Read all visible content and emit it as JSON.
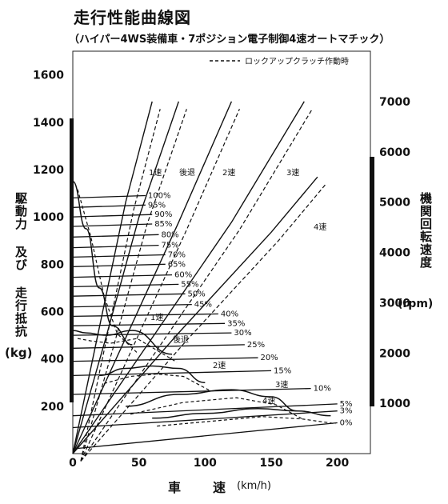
{
  "chart_data": {
    "type": "line",
    "title": "走行性能曲線図",
    "subtitle": "（ハイパー4WS装備車・7ポジション電子制御4速オートマチック）",
    "legend": {
      "dashed": "ロックアップクラッチ作動時"
    },
    "xlabel": "車　速",
    "xlabel_unit": "(km/h)",
    "ylabel_left": "駆動力 及び 走行抵抗",
    "ylabel_left_unit": "(kg)",
    "ylabel_right": "機関回転速度",
    "ylabel_right_unit": "(rpm)",
    "xlim": [
      0,
      225
    ],
    "ylim_left": [
      0,
      1700
    ],
    "ylim_right": [
      0,
      8000
    ],
    "x_ticks": [
      "0",
      "50",
      "100",
      "150",
      "200"
    ],
    "y_left_ticks": [
      "200",
      "400",
      "600",
      "800",
      "1000",
      "1200",
      "1400",
      "1600"
    ],
    "y_right_ticks": [
      "1000",
      "2000",
      "3000",
      "4000",
      "5000",
      "6000",
      "7000"
    ],
    "gear_labels": [
      "1速",
      "後退",
      "2速",
      "3速",
      "4速",
      "1速",
      "後退",
      "2速",
      "3速",
      "4速"
    ],
    "resistance_labels": [
      "5%",
      "3%",
      "0%"
    ],
    "drive_force": [
      {
        "name": "1速",
        "x": [
          0,
          10,
          20,
          30,
          45
        ],
        "y": [
          1150,
          950,
          700,
          540,
          460
        ]
      },
      {
        "name": "後退",
        "x": [
          0,
          10,
          25,
          45,
          75
        ],
        "y": [
          520,
          510,
          500,
          520,
          420
        ]
      },
      {
        "name": "2速",
        "x": [
          20,
          40,
          60,
          80,
          100
        ],
        "y": [
          330,
          360,
          370,
          360,
          300
        ]
      },
      {
        "name": "3速",
        "x": [
          40,
          80,
          120,
          150,
          170
        ],
        "y": [
          200,
          250,
          270,
          240,
          180
        ]
      },
      {
        "name": "4速",
        "x": [
          60,
          100,
          140,
          170,
          195
        ],
        "y": [
          150,
          170,
          190,
          180,
          160
        ]
      }
    ],
    "engine_speed": [
      {
        "name": "1速",
        "x": [
          0,
          20,
          40,
          60
        ],
        "y": [
          0,
          2500,
          5000,
          7000
        ]
      },
      {
        "name": "後退",
        "x": [
          0,
          25,
          50,
          80
        ],
        "y": [
          0,
          2300,
          4700,
          7000
        ]
      },
      {
        "name": "2速",
        "x": [
          0,
          40,
          80,
          120
        ],
        "y": [
          0,
          2300,
          4600,
          7000
        ]
      },
      {
        "name": "3速",
        "x": [
          0,
          60,
          120,
          175
        ],
        "y": [
          0,
          2300,
          4600,
          7000
        ]
      },
      {
        "name": "4速",
        "x": [
          0,
          80,
          150,
          185
        ],
        "y": [
          0,
          2400,
          4400,
          5500
        ]
      }
    ],
    "running_resistance": [
      {
        "name": "100%",
        "x": [
          0,
          55
        ],
        "y": [
          1080,
          1090
        ]
      },
      {
        "name": "95%",
        "x": [
          0,
          55
        ],
        "y": [
          1040,
          1050
        ]
      },
      {
        "name": "90%",
        "x": [
          0,
          60
        ],
        "y": [
          1000,
          1010
        ]
      },
      {
        "name": "85%",
        "x": [
          0,
          60
        ],
        "y": [
          960,
          970
        ]
      },
      {
        "name": "80%",
        "x": [
          0,
          65
        ],
        "y": [
          915,
          925
        ]
      },
      {
        "name": "75%",
        "x": [
          0,
          65
        ],
        "y": [
          870,
          880
        ]
      },
      {
        "name": "70%",
        "x": [
          0,
          70
        ],
        "y": [
          830,
          840
        ]
      },
      {
        "name": "65%",
        "x": [
          0,
          70
        ],
        "y": [
          790,
          800
        ]
      },
      {
        "name": "60%",
        "x": [
          0,
          75
        ],
        "y": [
          745,
          755
        ]
      },
      {
        "name": "55%",
        "x": [
          0,
          80
        ],
        "y": [
          705,
          715
        ]
      },
      {
        "name": "50%",
        "x": [
          0,
          85
        ],
        "y": [
          665,
          675
        ]
      },
      {
        "name": "45%",
        "x": [
          0,
          90
        ],
        "y": [
          620,
          630
        ]
      },
      {
        "name": "40%",
        "x": [
          0,
          110
        ],
        "y": [
          580,
          590
        ]
      },
      {
        "name": "35%",
        "x": [
          0,
          115
        ],
        "y": [
          540,
          550
        ]
      },
      {
        "name": "30%",
        "x": [
          0,
          120
        ],
        "y": [
          500,
          510
        ]
      },
      {
        "name": "25%",
        "x": [
          0,
          130
        ],
        "y": [
          445,
          460
        ]
      },
      {
        "name": "20%",
        "x": [
          0,
          140
        ],
        "y": [
          390,
          405
        ]
      },
      {
        "name": "15%",
        "x": [
          0,
          150
        ],
        "y": [
          330,
          350
        ]
      },
      {
        "name": "10%",
        "x": [
          0,
          180
        ],
        "y": [
          250,
          275
        ]
      },
      {
        "name": "5%",
        "x": [
          0,
          200
        ],
        "y": [
          160,
          210
        ]
      },
      {
        "name": "3%",
        "x": [
          0,
          200
        ],
        "y": [
          110,
          180
        ]
      },
      {
        "name": "0%",
        "x": [
          0,
          200
        ],
        "y": [
          20,
          130
        ]
      }
    ]
  }
}
